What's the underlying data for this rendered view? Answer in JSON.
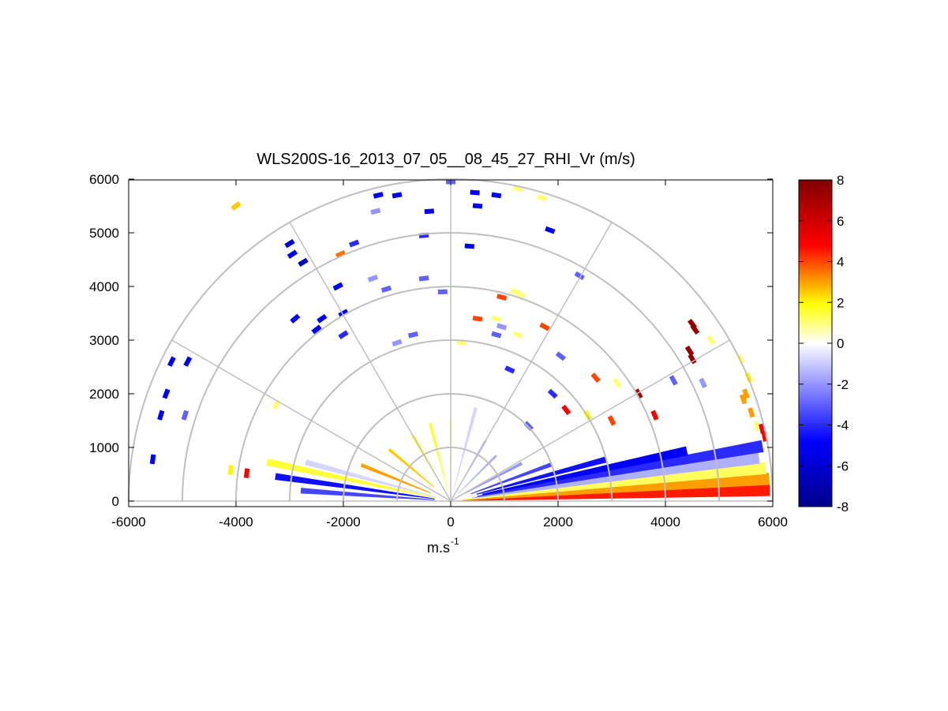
{
  "chart_data": {
    "type": "heatmap",
    "plot_kind": "polar RHI sector scan",
    "title": "WLS200S-16_2013_07_05__08_45_27_RHI_Vr (m/s)",
    "xlabel_main": "m.s",
    "xlabel_sup": "-1",
    "ylabel": "",
    "xlim": [
      -6000,
      6000
    ],
    "ylim": [
      -100,
      6000
    ],
    "x_ticks": [
      "-6000",
      "-4000",
      "-2000",
      "0",
      "2000",
      "4000",
      "6000"
    ],
    "y_ticks": [
      "0",
      "1000",
      "2000",
      "3000",
      "4000",
      "5000",
      "6000"
    ],
    "range_rings_m": [
      1000,
      2000,
      3000,
      4000,
      5000,
      6000
    ],
    "spokes_deg": [
      0,
      30,
      60,
      90,
      120,
      150,
      180
    ],
    "grid": true,
    "colorbar": {
      "label": "",
      "range": [
        -8,
        8
      ],
      "ticks": [
        "8",
        "6",
        "4",
        "2",
        "0",
        "-2",
        "-4",
        "-6",
        "-8"
      ],
      "colors": [
        "#00008b",
        "#0000ff",
        "#ffffff",
        "#ffff00",
        "#ff0000",
        "#800000"
      ]
    },
    "beams": [
      {
        "az_deg": 2,
        "r": [
          200,
          5950
        ],
        "v": 4.5
      },
      {
        "az_deg": 4,
        "r": [
          200,
          5950
        ],
        "v": 3.0
      },
      {
        "az_deg": 6,
        "r": [
          200,
          5900
        ],
        "v": 1.2
      },
      {
        "az_deg": 8,
        "r": [
          400,
          5800
        ],
        "v": -1.5
      },
      {
        "az_deg": 10,
        "r": [
          500,
          5900
        ],
        "v": -4.0
      },
      {
        "az_deg": 12,
        "r": [
          600,
          4500
        ],
        "v": -5.0
      },
      {
        "az_deg": 15,
        "r": [
          500,
          3000
        ],
        "v": -4.5
      },
      {
        "az_deg": 20,
        "r": [
          400,
          2000
        ],
        "v": -3.5
      },
      {
        "az_deg": 28,
        "r": [
          300,
          1500
        ],
        "v": -2.0
      },
      {
        "az_deg": 45,
        "r": [
          200,
          1200
        ],
        "v": -1.5
      },
      {
        "az_deg": 60,
        "r": [
          200,
          1300
        ],
        "v": -1.2
      },
      {
        "az_deg": 75,
        "r": [
          200,
          1800
        ],
        "v": -0.8
      },
      {
        "az_deg": 90,
        "r": [
          200,
          1500
        ],
        "v": 0.5
      },
      {
        "az_deg": 105,
        "r": [
          200,
          1500
        ],
        "v": 1.5
      },
      {
        "az_deg": 120,
        "r": [
          300,
          1400
        ],
        "v": 1.8
      },
      {
        "az_deg": 140,
        "r": [
          400,
          1500
        ],
        "v": 2.5
      },
      {
        "az_deg": 158,
        "r": [
          400,
          1800
        ],
        "v": 3.0
      },
      {
        "az_deg": 165,
        "r": [
          300,
          2800
        ],
        "v": -0.8
      },
      {
        "az_deg": 168,
        "r": [
          300,
          3500
        ],
        "v": 1.5
      },
      {
        "az_deg": 172,
        "r": [
          300,
          3300
        ],
        "v": -4.5
      },
      {
        "az_deg": 176,
        "r": [
          300,
          2800
        ],
        "v": -3.5
      }
    ],
    "scatter": [
      {
        "x": -5550,
        "y": 780,
        "v": -5
      },
      {
        "x": -5400,
        "y": 1600,
        "v": -5
      },
      {
        "x": -5300,
        "y": 2000,
        "v": -5
      },
      {
        "x": -5200,
        "y": 2600,
        "v": -5
      },
      {
        "x": -4900,
        "y": 2600,
        "v": -5
      },
      {
        "x": -4950,
        "y": 1600,
        "v": -3
      },
      {
        "x": -4000,
        "y": 5500,
        "v": 2.5
      },
      {
        "x": -3000,
        "y": 4800,
        "v": -6
      },
      {
        "x": -2950,
        "y": 4600,
        "v": -5
      },
      {
        "x": -2750,
        "y": 4450,
        "v": -6.5
      },
      {
        "x": -3250,
        "y": 1800,
        "v": 1
      },
      {
        "x": -2900,
        "y": 3400,
        "v": -5
      },
      {
        "x": -2500,
        "y": 3200,
        "v": -5
      },
      {
        "x": -2400,
        "y": 3400,
        "v": -5
      },
      {
        "x": -2100,
        "y": 4000,
        "v": -5
      },
      {
        "x": -2000,
        "y": 3500,
        "v": -5
      },
      {
        "x": -2000,
        "y": 3100,
        "v": -4
      },
      {
        "x": -1400,
        "y": 5400,
        "v": -2
      },
      {
        "x": -1350,
        "y": 5700,
        "v": -5
      },
      {
        "x": -1000,
        "y": 5700,
        "v": -5
      },
      {
        "x": -2050,
        "y": 4600,
        "v": 3.5
      },
      {
        "x": -1800,
        "y": 4800,
        "v": -4
      },
      {
        "x": -500,
        "y": 4950,
        "v": -4
      },
      {
        "x": -400,
        "y": 5400,
        "v": -5
      },
      {
        "x": 0,
        "y": 5950,
        "v": -3
      },
      {
        "x": 450,
        "y": 5750,
        "v": -5
      },
      {
        "x": 500,
        "y": 5500,
        "v": -5
      },
      {
        "x": 850,
        "y": 5700,
        "v": -5
      },
      {
        "x": 1250,
        "y": 5820,
        "v": 1
      },
      {
        "x": 1700,
        "y": 5650,
        "v": 1
      },
      {
        "x": 1850,
        "y": 5050,
        "v": -5
      },
      {
        "x": 350,
        "y": 4750,
        "v": -5
      },
      {
        "x": 2400,
        "y": 4200,
        "v": -3
      },
      {
        "x": -1450,
        "y": 4150,
        "v": -2
      },
      {
        "x": -1200,
        "y": 3950,
        "v": -3
      },
      {
        "x": -500,
        "y": 4150,
        "v": -3
      },
      {
        "x": -150,
        "y": 3900,
        "v": -3
      },
      {
        "x": 950,
        "y": 3800,
        "v": 4
      },
      {
        "x": 1200,
        "y": 3900,
        "v": 1
      },
      {
        "x": 1300,
        "y": 3850,
        "v": 1
      },
      {
        "x": 500,
        "y": 3400,
        "v": 4
      },
      {
        "x": 850,
        "y": 3400,
        "v": 1
      },
      {
        "x": 950,
        "y": 3250,
        "v": -2
      },
      {
        "x": 850,
        "y": 3100,
        "v": -3
      },
      {
        "x": 1250,
        "y": 3100,
        "v": 1
      },
      {
        "x": 1750,
        "y": 3250,
        "v": 4
      },
      {
        "x": 200,
        "y": 2950,
        "v": 1
      },
      {
        "x": -1000,
        "y": 2950,
        "v": -2
      },
      {
        "x": -700,
        "y": 3100,
        "v": -3
      },
      {
        "x": 2050,
        "y": 2700,
        "v": -3
      },
      {
        "x": 1100,
        "y": 2450,
        "v": -4
      },
      {
        "x": 4500,
        "y": 3300,
        "v": 7.5
      },
      {
        "x": 4550,
        "y": 3200,
        "v": 7.5
      },
      {
        "x": 4450,
        "y": 2800,
        "v": 7.5
      },
      {
        "x": 4500,
        "y": 2650,
        "v": 7.5
      },
      {
        "x": 4850,
        "y": 3000,
        "v": 1
      },
      {
        "x": 5400,
        "y": 2650,
        "v": 1
      },
      {
        "x": 5550,
        "y": 2300,
        "v": 2
      },
      {
        "x": 5500,
        "y": 2000,
        "v": 3
      },
      {
        "x": 5450,
        "y": 1900,
        "v": 3
      },
      {
        "x": 5600,
        "y": 1650,
        "v": 3
      },
      {
        "x": 5700,
        "y": 1400,
        "v": 1
      },
      {
        "x": 5800,
        "y": 1350,
        "v": 5
      },
      {
        "x": 5850,
        "y": 1200,
        "v": 5
      },
      {
        "x": 3500,
        "y": 2000,
        "v": 7
      },
      {
        "x": 3100,
        "y": 2200,
        "v": 1
      },
      {
        "x": 2700,
        "y": 2300,
        "v": 4
      },
      {
        "x": 2150,
        "y": 1700,
        "v": 5
      },
      {
        "x": 2550,
        "y": 1600,
        "v": 2
      },
      {
        "x": 3000,
        "y": 1500,
        "v": 4
      },
      {
        "x": 3800,
        "y": 1600,
        "v": 5
      },
      {
        "x": 4150,
        "y": 2250,
        "v": -3
      },
      {
        "x": 4700,
        "y": 2200,
        "v": -2
      },
      {
        "x": 1450,
        "y": 1400,
        "v": -3
      },
      {
        "x": 1900,
        "y": 2000,
        "v": -4
      },
      {
        "x": -3800,
        "y": 520,
        "v": 5
      },
      {
        "x": -4100,
        "y": 580,
        "v": 2
      }
    ]
  }
}
